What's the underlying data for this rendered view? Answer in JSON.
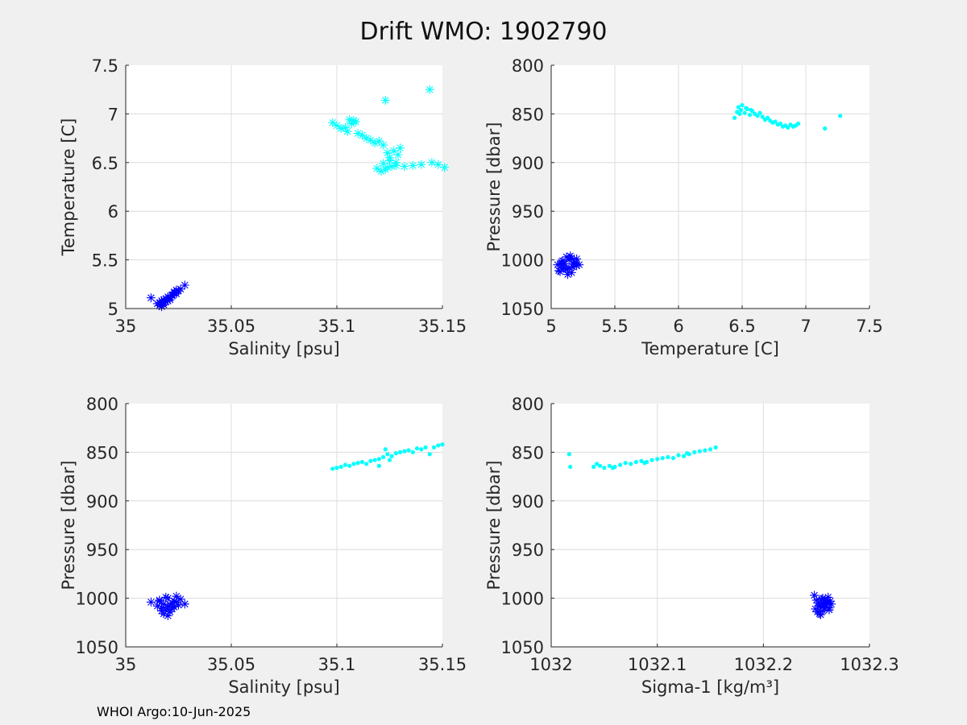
{
  "title": "Drift WMO: 1902790",
  "footer": "WHOI Argo:10-Jun-2025",
  "colors": {
    "cyan": "#00ffff",
    "blue": "#0000ff"
  },
  "chart_data": [
    {
      "type": "scatter",
      "xlabel": "Salinity [psu]",
      "ylabel": "Temperature [C]",
      "xlim": [
        35,
        35.15
      ],
      "ylim": [
        5,
        7.5
      ],
      "y_reversed": false,
      "xticks": [
        "35",
        "35.05",
        "35.1",
        "35.15"
      ],
      "yticks": [
        "5",
        "5.5",
        "6",
        "6.5",
        "7",
        "7.5"
      ],
      "xtick_values": [
        35,
        35.05,
        35.1,
        35.15
      ],
      "ytick_values": [
        5,
        5.5,
        6,
        6.5,
        7,
        7.5
      ],
      "grid": true,
      "series": [
        {
          "color": "#0000ff",
          "marker": "asterisk",
          "x": [
            35.012,
            35.015,
            35.016,
            35.017,
            35.018,
            35.019,
            35.02,
            35.021,
            35.022,
            35.023,
            35.024,
            35.025,
            35.026,
            35.028,
            35.016,
            35.018,
            35.02,
            35.022,
            35.017,
            35.019,
            35.021,
            35.023,
            35.024,
            35.018
          ],
          "y": [
            5.11,
            5.05,
            5.03,
            5.08,
            5.06,
            5.1,
            5.12,
            5.09,
            5.14,
            5.16,
            5.15,
            5.18,
            5.2,
            5.24,
            5.06,
            5.04,
            5.08,
            5.13,
            5.02,
            5.07,
            5.11,
            5.17,
            5.19,
            5.09
          ]
        },
        {
          "color": "#00ffff",
          "marker": "asterisk",
          "x": [
            35.098,
            35.1,
            35.102,
            35.104,
            35.105,
            35.107,
            35.108,
            35.11,
            35.112,
            35.114,
            35.116,
            35.118,
            35.12,
            35.122,
            35.124,
            35.125,
            35.127,
            35.13,
            35.128,
            35.126,
            35.123,
            35.121,
            35.124,
            35.128,
            35.132,
            35.136,
            35.14,
            35.145,
            35.148,
            35.151,
            35.123,
            35.144,
            35.106,
            35.109,
            35.125,
            35.129,
            35.119,
            35.122
          ],
          "y": [
            6.91,
            6.88,
            6.85,
            6.86,
            6.82,
            6.9,
            6.93,
            6.8,
            6.78,
            6.75,
            6.73,
            6.7,
            6.72,
            6.68,
            6.6,
            6.55,
            6.62,
            6.65,
            6.5,
            6.46,
            6.43,
            6.41,
            6.45,
            6.47,
            6.46,
            6.47,
            6.48,
            6.5,
            6.48,
            6.45,
            7.14,
            7.25,
            6.94,
            6.92,
            6.52,
            6.58,
            6.44,
            6.49
          ]
        }
      ]
    },
    {
      "type": "scatter",
      "xlabel": "Temperature [C]",
      "ylabel": "Pressure [dbar]",
      "xlim": [
        5,
        7.5
      ],
      "ylim": [
        800,
        1050
      ],
      "y_reversed": true,
      "xticks": [
        "5",
        "5.5",
        "6",
        "6.5",
        "7",
        "7.5"
      ],
      "yticks": [
        "800",
        "850",
        "900",
        "950",
        "1000",
        "1050"
      ],
      "xtick_values": [
        5,
        5.5,
        6,
        6.5,
        7,
        7.5
      ],
      "ytick_values": [
        800,
        850,
        900,
        950,
        1000,
        1050
      ],
      "grid": true,
      "series": [
        {
          "color": "#0000ff",
          "marker": "asterisk",
          "x": [
            5.05,
            5.08,
            5.1,
            5.12,
            5.14,
            5.16,
            5.18,
            5.2,
            5.07,
            5.11,
            5.15,
            5.19,
            5.13,
            5.09,
            5.17,
            5.22,
            5.06,
            5.12,
            5.16,
            5.1,
            5.14,
            5.18,
            5.08,
            5.2
          ],
          "y": [
            1005,
            1002,
            1008,
            1010,
            1000,
            998,
            1004,
            1006,
            1012,
            1009,
            996,
            1003,
            1015,
            1001,
            1007,
            1005,
            1011,
            997,
            1013,
            1004,
            1008,
            1002,
            1006,
            999
          ]
        },
        {
          "color": "#00ffff",
          "marker": "dot",
          "x": [
            6.44,
            6.46,
            6.47,
            6.49,
            6.5,
            6.52,
            6.54,
            6.56,
            6.58,
            6.6,
            6.62,
            6.64,
            6.66,
            6.68,
            6.7,
            6.72,
            6.74,
            6.76,
            6.78,
            6.8,
            6.82,
            6.84,
            6.86,
            6.88,
            6.9,
            6.92,
            6.94,
            7.15,
            7.27,
            6.48,
            6.53,
            6.57
          ],
          "y": [
            854,
            848,
            843,
            846,
            841,
            849,
            845,
            851,
            847,
            850,
            852,
            849,
            853,
            856,
            854,
            857,
            859,
            858,
            861,
            860,
            863,
            862,
            864,
            861,
            863,
            862,
            860,
            865,
            852,
            850,
            844,
            846
          ]
        }
      ]
    },
    {
      "type": "scatter",
      "xlabel": "Salinity [psu]",
      "ylabel": "Pressure [dbar]",
      "xlim": [
        35,
        35.15
      ],
      "ylim": [
        800,
        1050
      ],
      "y_reversed": true,
      "xticks": [
        "35",
        "35.05",
        "35.1",
        "35.15"
      ],
      "yticks": [
        "800",
        "850",
        "900",
        "950",
        "1000",
        "1050"
      ],
      "xtick_values": [
        35,
        35.05,
        35.1,
        35.15
      ],
      "ytick_values": [
        800,
        850,
        900,
        950,
        1000,
        1050
      ],
      "grid": true,
      "series": [
        {
          "color": "#0000ff",
          "marker": "asterisk",
          "x": [
            35.012,
            35.015,
            35.016,
            35.017,
            35.018,
            35.019,
            35.02,
            35.021,
            35.022,
            35.023,
            35.024,
            35.025,
            35.026,
            35.028,
            35.018,
            35.02,
            35.022,
            35.016,
            35.021,
            35.019,
            35.024,
            35.017,
            35.023,
            35.02
          ],
          "y": [
            1004,
            1008,
            1002,
            1010,
            1006,
            1012,
            1000,
            1014,
            1005,
            1003,
            998,
            1007,
            1001,
            1006,
            1016,
            1009,
            1011,
            1003,
            1007,
            999,
            1004,
            1013,
            1009,
            1018
          ]
        },
        {
          "color": "#00ffff",
          "marker": "dot",
          "x": [
            35.098,
            35.1,
            35.102,
            35.104,
            35.106,
            35.108,
            35.11,
            35.112,
            35.114,
            35.116,
            35.118,
            35.12,
            35.122,
            35.124,
            35.126,
            35.128,
            35.13,
            35.132,
            35.134,
            35.136,
            35.138,
            35.14,
            35.142,
            35.144,
            35.146,
            35.148,
            35.15,
            35.123,
            35.125,
            35.12
          ],
          "y": [
            867,
            866,
            865,
            863,
            864,
            862,
            861,
            860,
            862,
            859,
            858,
            857,
            855,
            852,
            854,
            851,
            850,
            849,
            848,
            850,
            846,
            847,
            845,
            852,
            845,
            843,
            842,
            847,
            858,
            864
          ]
        }
      ]
    },
    {
      "type": "scatter",
      "xlabel": "Sigma-1 [kg/m³]",
      "ylabel": "Pressure [dbar]",
      "xlim": [
        1032,
        1032.3
      ],
      "ylim": [
        800,
        1050
      ],
      "y_reversed": true,
      "xticks": [
        "1032",
        "1032.1",
        "1032.2",
        "1032.3"
      ],
      "yticks": [
        "800",
        "850",
        "900",
        "950",
        "1000",
        "1050"
      ],
      "xtick_values": [
        1032,
        1032.1,
        1032.2,
        1032.3
      ],
      "ytick_values": [
        800,
        850,
        900,
        950,
        1000,
        1050
      ],
      "grid": true,
      "series": [
        {
          "color": "#0000ff",
          "marker": "asterisk",
          "x": [
            1032.248,
            1032.25,
            1032.252,
            1032.254,
            1032.256,
            1032.258,
            1032.26,
            1032.262,
            1032.264,
            1032.251,
            1032.255,
            1032.259,
            1032.263,
            1032.253,
            1032.257,
            1032.261,
            1032.249,
            1032.256,
            1032.26,
            1032.254,
            1032.258,
            1032.252,
            1032.262,
            1032.257
          ],
          "y": [
            997,
            1002,
            1005,
            1008,
            1000,
            1010,
            1004,
            1012,
            1006,
            1014,
            1001,
            1009,
            1003,
            1016,
            1007,
            999,
            1011,
            1013,
            1005,
            1017,
            1002,
            1008,
            1010,
            1006
          ]
        },
        {
          "color": "#00ffff",
          "marker": "dot",
          "x": [
            1032.017,
            1032.018,
            1032.04,
            1032.043,
            1032.046,
            1032.05,
            1032.055,
            1032.06,
            1032.065,
            1032.07,
            1032.075,
            1032.08,
            1032.085,
            1032.09,
            1032.095,
            1032.1,
            1032.105,
            1032.11,
            1032.115,
            1032.12,
            1032.125,
            1032.13,
            1032.135,
            1032.14,
            1032.145,
            1032.15,
            1032.155,
            1032.058,
            1032.088,
            1032.128
          ],
          "y": [
            852,
            865,
            865,
            862,
            864,
            866,
            864,
            865,
            863,
            861,
            862,
            860,
            859,
            860,
            858,
            857,
            856,
            855,
            856,
            853,
            854,
            852,
            850,
            849,
            848,
            847,
            845,
            866,
            861,
            851
          ]
        }
      ]
    }
  ]
}
